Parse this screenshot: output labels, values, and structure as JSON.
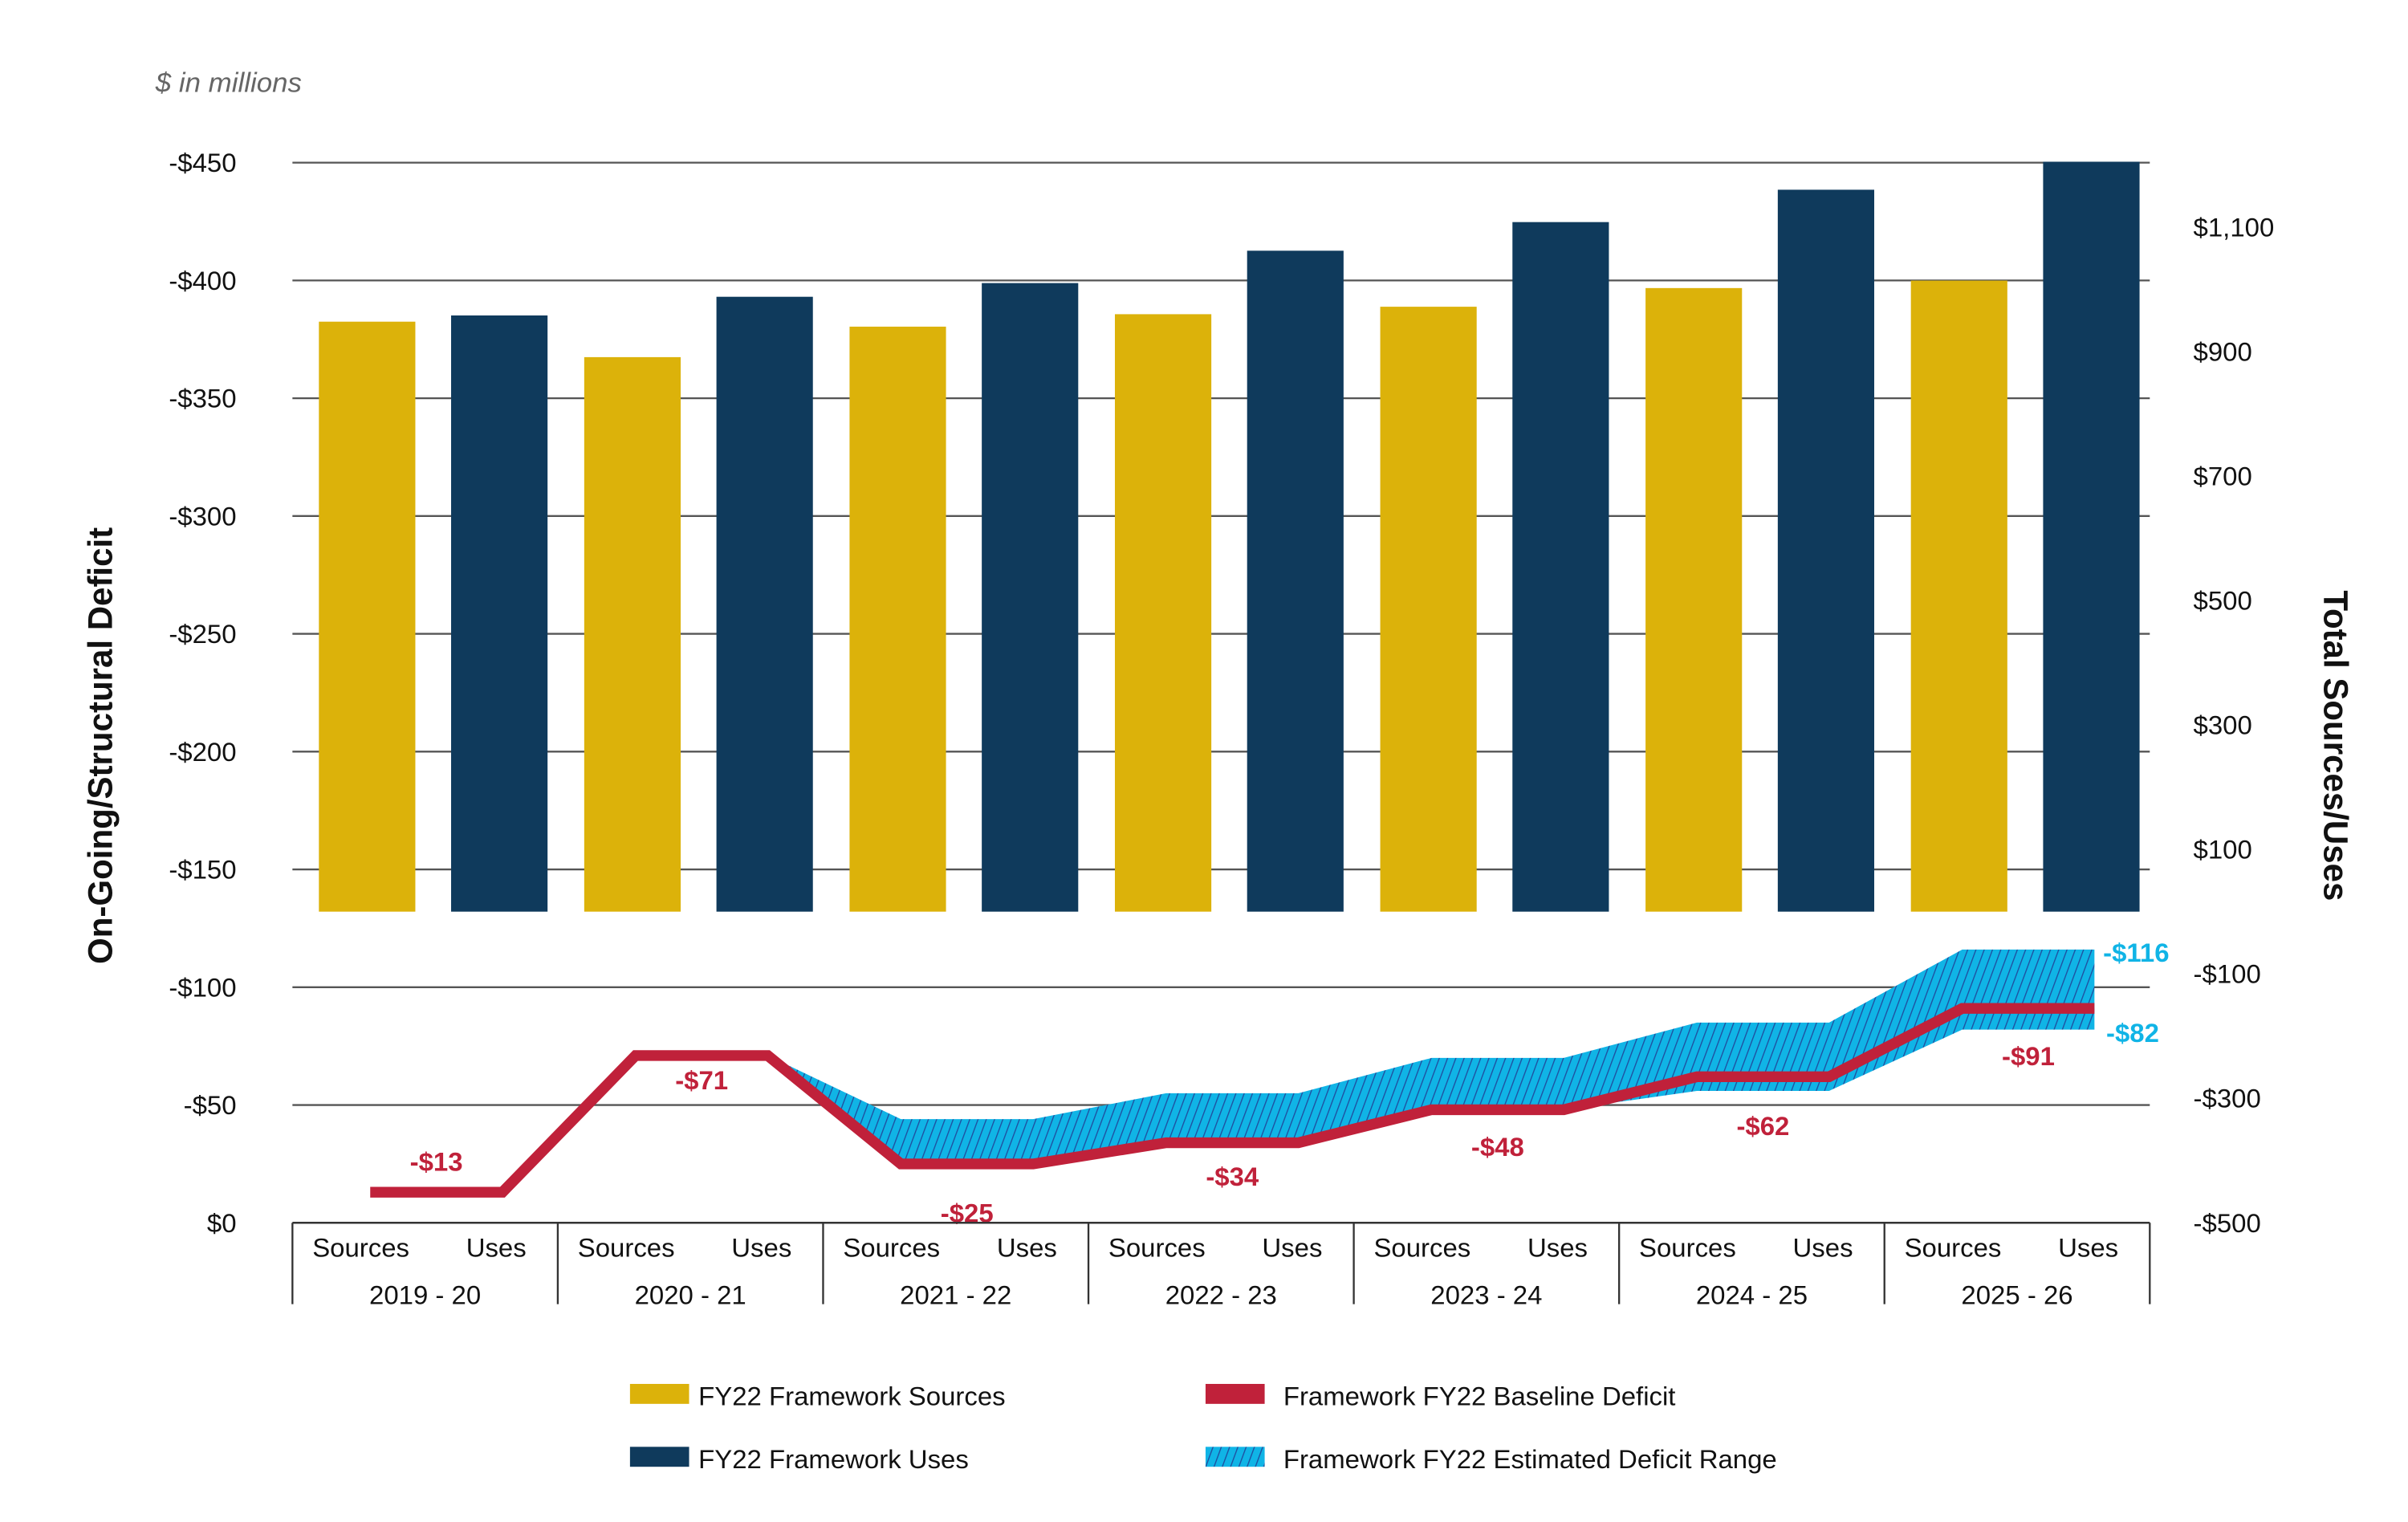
{
  "chart_data": {
    "type": "bar",
    "subtitle": "$ in millions",
    "left_axis": {
      "label": "On-Going/Structural Deficit",
      "ticks": [
        "-$450",
        "-$400",
        "-$350",
        "-$300",
        "-$250",
        "-$200",
        "-$150",
        "-$100",
        "-$50",
        "$0"
      ],
      "range": [
        0,
        -450
      ]
    },
    "right_axis": {
      "label": "Total Sources/Uses",
      "ticks": [
        "$1,100",
        "$900",
        "$700",
        "$500",
        "$300",
        "$100",
        "-$100",
        "-$300",
        "-$500"
      ],
      "range": [
        -500,
        1200
      ]
    },
    "categories": [
      "2019 - 20",
      "2020 - 21",
      "2021 - 22",
      "2022 - 23",
      "2023 - 24",
      "2024 - 25",
      "2025 - 26"
    ],
    "subcategories": [
      "Sources",
      "Uses"
    ],
    "series": [
      {
        "name": "FY22 Framework Sources",
        "type": "bar",
        "axis": "right",
        "color": "#dcb20a",
        "values": [
          948,
          891,
          940,
          960,
          972,
          1002,
          1014
        ]
      },
      {
        "name": "FY22 Framework Uses",
        "type": "bar",
        "axis": "right",
        "color": "#0f3a5c",
        "values": [
          958,
          988,
          1010,
          1062,
          1108,
          1160,
          1205
        ]
      },
      {
        "name": "Framework FY22 Baseline Deficit",
        "type": "line",
        "axis": "left",
        "color": "#c0213a",
        "values": [
          -13,
          -71,
          -25,
          -34,
          -48,
          -62,
          -91
        ],
        "labels": [
          "-$13",
          "-$71",
          "-$25",
          "-$34",
          "-$48",
          "-$62",
          "-$91"
        ]
      },
      {
        "name": "Framework FY22 Estimated Deficit Range",
        "type": "area",
        "axis": "left",
        "color": "#10b4e6",
        "hatch": "#1f4fa0",
        "upper": [
          null,
          -71,
          -44,
          -55,
          -70,
          -85,
          -116
        ],
        "lower": [
          null,
          -71,
          -25,
          -34,
          -48,
          -56,
          -82
        ],
        "end_labels": {
          "upper": "-$116",
          "lower": "-$82"
        }
      }
    ],
    "legend": {
      "placement": "bottom",
      "items": [
        {
          "label": "FY22 Framework Sources",
          "swatch": "solid",
          "color": "#dcb20a"
        },
        {
          "label": "Framework FY22 Baseline Deficit",
          "swatch": "solid",
          "color": "#c0213a"
        },
        {
          "label": "FY22 Framework Uses",
          "swatch": "solid",
          "color": "#0f3a5c"
        },
        {
          "label": "Framework FY22 Estimated Deficit Range",
          "swatch": "hatch",
          "color": "#10b4e6"
        }
      ]
    },
    "grid": true
  }
}
